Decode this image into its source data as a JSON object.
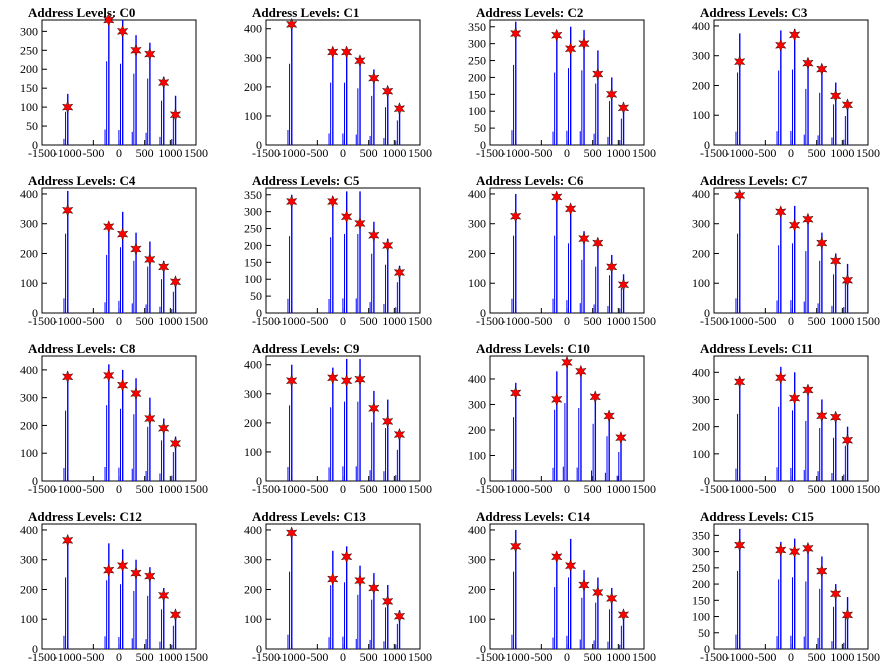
{
  "title_prefix": "Address Levels: ",
  "colors": {
    "histogram": "#0000ff",
    "marker": "#ff0000",
    "marker_stroke": "#000000",
    "frame": "#000000"
  },
  "chart_data": [
    {
      "type": "bar",
      "title": "Address Levels: C0",
      "xlim": [
        -1500,
        1500
      ],
      "ylim": [
        0,
        330
      ],
      "yticks": [
        0,
        50,
        100,
        150,
        200,
        250,
        300
      ],
      "xticks": [
        -1500,
        -1000,
        -500,
        0,
        500,
        1000,
        1500
      ],
      "x": [
        -1000,
        -200,
        70,
        330,
        600,
        870,
        1100
      ],
      "values": [
        100,
        330,
        300,
        250,
        240,
        165,
        80
      ],
      "peak_tops": [
        135,
        340,
        330,
        290,
        270,
        180,
        130
      ]
    },
    {
      "type": "bar",
      "title": "Address Levels: C1",
      "xlim": [
        -1500,
        1500
      ],
      "ylim": [
        0,
        430
      ],
      "yticks": [
        0,
        100,
        200,
        300,
        400
      ],
      "xticks": [
        -1500,
        -1000,
        -500,
        0,
        500,
        1000,
        1500
      ],
      "x": [
        -1000,
        -200,
        70,
        330,
        600,
        870,
        1100
      ],
      "values": [
        415,
        320,
        320,
        290,
        230,
        185,
        125
      ],
      "peak_tops": [
        430,
        330,
        330,
        300,
        260,
        200,
        130
      ]
    },
    {
      "type": "bar",
      "title": "Address Levels: C2",
      "xlim": [
        -1500,
        1500
      ],
      "ylim": [
        0,
        370
      ],
      "yticks": [
        0,
        50,
        100,
        150,
        200,
        250,
        300,
        350
      ],
      "xticks": [
        -1500,
        -1000,
        -500,
        0,
        500,
        1000,
        1500
      ],
      "x": [
        -1000,
        -200,
        70,
        330,
        600,
        870,
        1100
      ],
      "values": [
        330,
        325,
        285,
        300,
        210,
        150,
        110
      ],
      "peak_tops": [
        365,
        330,
        350,
        340,
        280,
        200,
        120
      ]
    },
    {
      "type": "bar",
      "title": "Address Levels: C3",
      "xlim": [
        -1500,
        1500
      ],
      "ylim": [
        0,
        420
      ],
      "yticks": [
        0,
        100,
        200,
        300,
        400
      ],
      "xticks": [
        -1500,
        -1000,
        -500,
        0,
        500,
        1000,
        1500
      ],
      "x": [
        -1000,
        -200,
        70,
        330,
        600,
        870,
        1100
      ],
      "values": [
        280,
        335,
        370,
        275,
        255,
        165,
        135
      ],
      "peak_tops": [
        375,
        385,
        390,
        290,
        270,
        210,
        150
      ]
    },
    {
      "type": "bar",
      "title": "Address Levels: C4",
      "xlim": [
        -1500,
        1500
      ],
      "ylim": [
        0,
        420
      ],
      "yticks": [
        0,
        100,
        200,
        300,
        400
      ],
      "xticks": [
        -1500,
        -1000,
        -500,
        0,
        500,
        1000,
        1500
      ],
      "x": [
        -1000,
        -200,
        70,
        330,
        600,
        870,
        1100
      ],
      "values": [
        345,
        290,
        265,
        215,
        180,
        155,
        105
      ],
      "peak_tops": [
        410,
        300,
        340,
        270,
        240,
        175,
        110
      ]
    },
    {
      "type": "bar",
      "title": "Address Levels: C5",
      "xlim": [
        -1500,
        1500
      ],
      "ylim": [
        0,
        370
      ],
      "yticks": [
        0,
        50,
        100,
        150,
        200,
        250,
        300,
        350
      ],
      "xticks": [
        -1500,
        -1000,
        -500,
        0,
        500,
        1000,
        1500
      ],
      "x": [
        -1000,
        -200,
        70,
        330,
        600,
        870,
        1100
      ],
      "values": [
        330,
        330,
        285,
        265,
        230,
        200,
        120
      ],
      "peak_tops": [
        350,
        345,
        360,
        360,
        270,
        220,
        140
      ]
    },
    {
      "type": "bar",
      "title": "Address Levels: C6",
      "xlim": [
        -1500,
        1500
      ],
      "ylim": [
        0,
        420
      ],
      "yticks": [
        0,
        100,
        200,
        300,
        400
      ],
      "xticks": [
        -1500,
        -1000,
        -500,
        0,
        500,
        1000,
        1500
      ],
      "x": [
        -1000,
        -200,
        70,
        330,
        600,
        870,
        1100
      ],
      "values": [
        325,
        390,
        350,
        250,
        235,
        155,
        95
      ],
      "peak_tops": [
        400,
        400,
        360,
        275,
        240,
        195,
        130
      ]
    },
    {
      "type": "bar",
      "title": "Address Levels: C7",
      "xlim": [
        -1500,
        1500
      ],
      "ylim": [
        0,
        420
      ],
      "yticks": [
        0,
        100,
        200,
        300,
        400
      ],
      "xticks": [
        -1500,
        -1000,
        -500,
        0,
        500,
        1000,
        1500
      ],
      "x": [
        -1000,
        -200,
        70,
        330,
        600,
        870,
        1100
      ],
      "values": [
        395,
        340,
        295,
        315,
        235,
        175,
        110
      ],
      "peak_tops": [
        410,
        350,
        360,
        320,
        270,
        200,
        165
      ]
    },
    {
      "type": "bar",
      "title": "Address Levels: C8",
      "xlim": [
        -1500,
        1500
      ],
      "ylim": [
        0,
        450
      ],
      "yticks": [
        0,
        100,
        200,
        300,
        400
      ],
      "xticks": [
        -1500,
        -1000,
        -500,
        0,
        500,
        1000,
        1500
      ],
      "x": [
        -1000,
        -200,
        70,
        330,
        600,
        870,
        1100
      ],
      "values": [
        375,
        380,
        345,
        315,
        225,
        190,
        135
      ],
      "peak_tops": [
        390,
        420,
        400,
        370,
        300,
        225,
        160
      ]
    },
    {
      "type": "bar",
      "title": "Address Levels: C9",
      "xlim": [
        -1500,
        1500
      ],
      "ylim": [
        0,
        430
      ],
      "yticks": [
        0,
        100,
        200,
        300,
        400
      ],
      "xticks": [
        -1500,
        -1000,
        -500,
        0,
        500,
        1000,
        1500
      ],
      "x": [
        -1000,
        -200,
        70,
        330,
        600,
        870,
        1100
      ],
      "values": [
        345,
        355,
        345,
        350,
        250,
        205,
        160
      ],
      "peak_tops": [
        400,
        390,
        420,
        420,
        310,
        280,
        165
      ]
    },
    {
      "type": "bar",
      "title": "Address Levels: C10",
      "xlim": [
        -1500,
        1500
      ],
      "ylim": [
        0,
        490
      ],
      "yticks": [
        0,
        100,
        200,
        300,
        400
      ],
      "xticks": [
        -1500,
        -1000,
        -500,
        0,
        500,
        1000,
        1500
      ],
      "x": [
        -1000,
        -200,
        0,
        270,
        550,
        820,
        1050
      ],
      "values": [
        345,
        320,
        465,
        430,
        330,
        255,
        170
      ],
      "peak_tops": [
        385,
        430,
        470,
        440,
        345,
        270,
        175
      ]
    },
    {
      "type": "bar",
      "title": "Address Levels: C11",
      "xlim": [
        -1500,
        1500
      ],
      "ylim": [
        0,
        460
      ],
      "yticks": [
        0,
        100,
        200,
        300,
        400
      ],
      "xticks": [
        -1500,
        -1000,
        -500,
        0,
        500,
        1000,
        1500
      ],
      "x": [
        -1000,
        -200,
        70,
        330,
        600,
        870,
        1100
      ],
      "values": [
        365,
        380,
        305,
        335,
        240,
        235,
        150
      ],
      "peak_tops": [
        380,
        420,
        400,
        340,
        300,
        245,
        200
      ]
    },
    {
      "type": "bar",
      "title": "Address Levels: C12",
      "xlim": [
        -1500,
        1500
      ],
      "ylim": [
        0,
        420
      ],
      "yticks": [
        0,
        100,
        200,
        300,
        400
      ],
      "xticks": [
        -1500,
        -1000,
        -500,
        0,
        500,
        1000,
        1500
      ],
      "x": [
        -1000,
        -200,
        70,
        330,
        600,
        870,
        1100
      ],
      "values": [
        365,
        265,
        280,
        255,
        245,
        180,
        115
      ],
      "peak_tops": [
        370,
        355,
        335,
        300,
        275,
        205,
        120
      ]
    },
    {
      "type": "bar",
      "title": "Address Levels: C13",
      "xlim": [
        -1500,
        1500
      ],
      "ylim": [
        0,
        420
      ],
      "yticks": [
        0,
        100,
        200,
        300,
        400
      ],
      "xticks": [
        -1500,
        -1000,
        -500,
        0,
        500,
        1000,
        1500
      ],
      "x": [
        -1000,
        -200,
        70,
        330,
        600,
        870,
        1100
      ],
      "values": [
        390,
        235,
        310,
        230,
        205,
        160,
        110
      ],
      "peak_tops": [
        400,
        330,
        345,
        280,
        255,
        215,
        130
      ]
    },
    {
      "type": "bar",
      "title": "Address Levels: C14",
      "xlim": [
        -1500,
        1500
      ],
      "ylim": [
        0,
        420
      ],
      "yticks": [
        0,
        100,
        200,
        300,
        400
      ],
      "xticks": [
        -1500,
        -1000,
        -500,
        0,
        500,
        1000,
        1500
      ],
      "x": [
        -1000,
        -200,
        70,
        330,
        600,
        870,
        1100
      ],
      "values": [
        345,
        310,
        280,
        215,
        190,
        170,
        115
      ],
      "peak_tops": [
        400,
        320,
        370,
        265,
        240,
        205,
        120
      ]
    },
    {
      "type": "bar",
      "title": "Address Levels: C15",
      "xlim": [
        -1500,
        1500
      ],
      "ylim": [
        0,
        385
      ],
      "yticks": [
        0,
        50,
        100,
        150,
        200,
        250,
        300,
        350
      ],
      "xticks": [
        -1500,
        -1000,
        -500,
        0,
        500,
        1000,
        1500
      ],
      "x": [
        -1000,
        -200,
        70,
        330,
        600,
        870,
        1100
      ],
      "values": [
        320,
        305,
        300,
        310,
        240,
        170,
        105
      ],
      "peak_tops": [
        370,
        330,
        340,
        320,
        285,
        200,
        160
      ]
    }
  ]
}
